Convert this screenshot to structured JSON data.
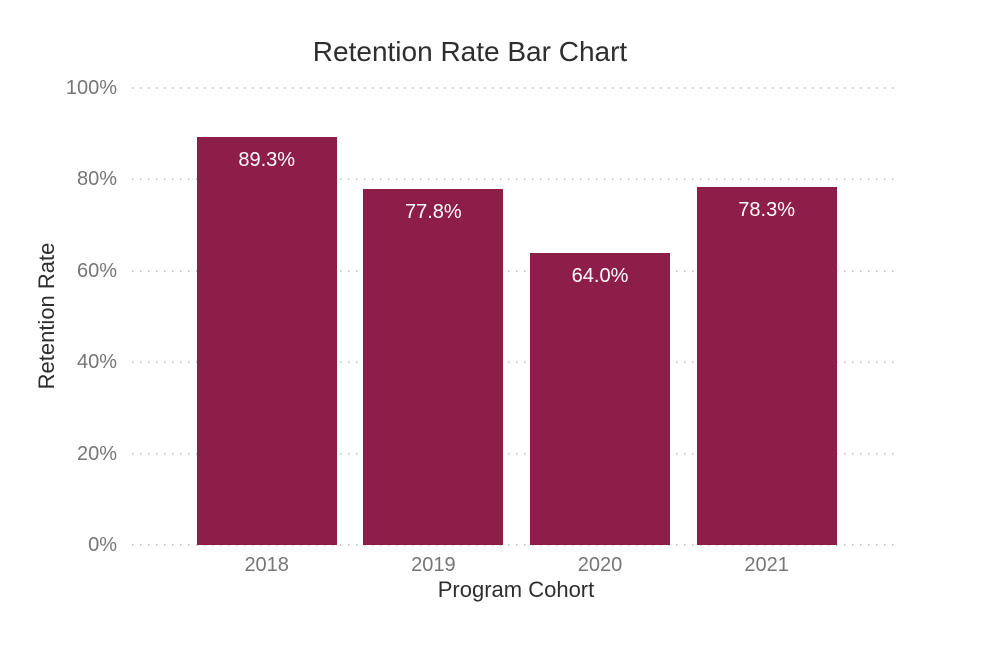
{
  "chart_data": {
    "type": "bar",
    "title": "Retention Rate Bar Chart",
    "xlabel": "Program Cohort",
    "ylabel": "Retention Rate",
    "categories": [
      "2018",
      "2019",
      "2020",
      "2021"
    ],
    "values": [
      89.3,
      77.8,
      64.0,
      78.3
    ],
    "bar_labels": [
      "89.3%",
      "77.8%",
      "64.0%",
      "78.3%"
    ],
    "y_ticks": [
      "0%",
      "20%",
      "40%",
      "60%",
      "80%",
      "100%"
    ],
    "y_tick_values": [
      0,
      20,
      40,
      60,
      80,
      100
    ],
    "ylim": [
      0,
      100
    ],
    "grid": "horizontal-dotted",
    "legend": "none",
    "colors": {
      "bar": "#8d1e49",
      "bar_label_text": "#ffffff",
      "title_text": "#2e2e2e",
      "axis_title_text": "#2e2e2e",
      "tick_text": "#767676",
      "gridline": "#cbcbcb",
      "background": "#ffffff"
    }
  }
}
